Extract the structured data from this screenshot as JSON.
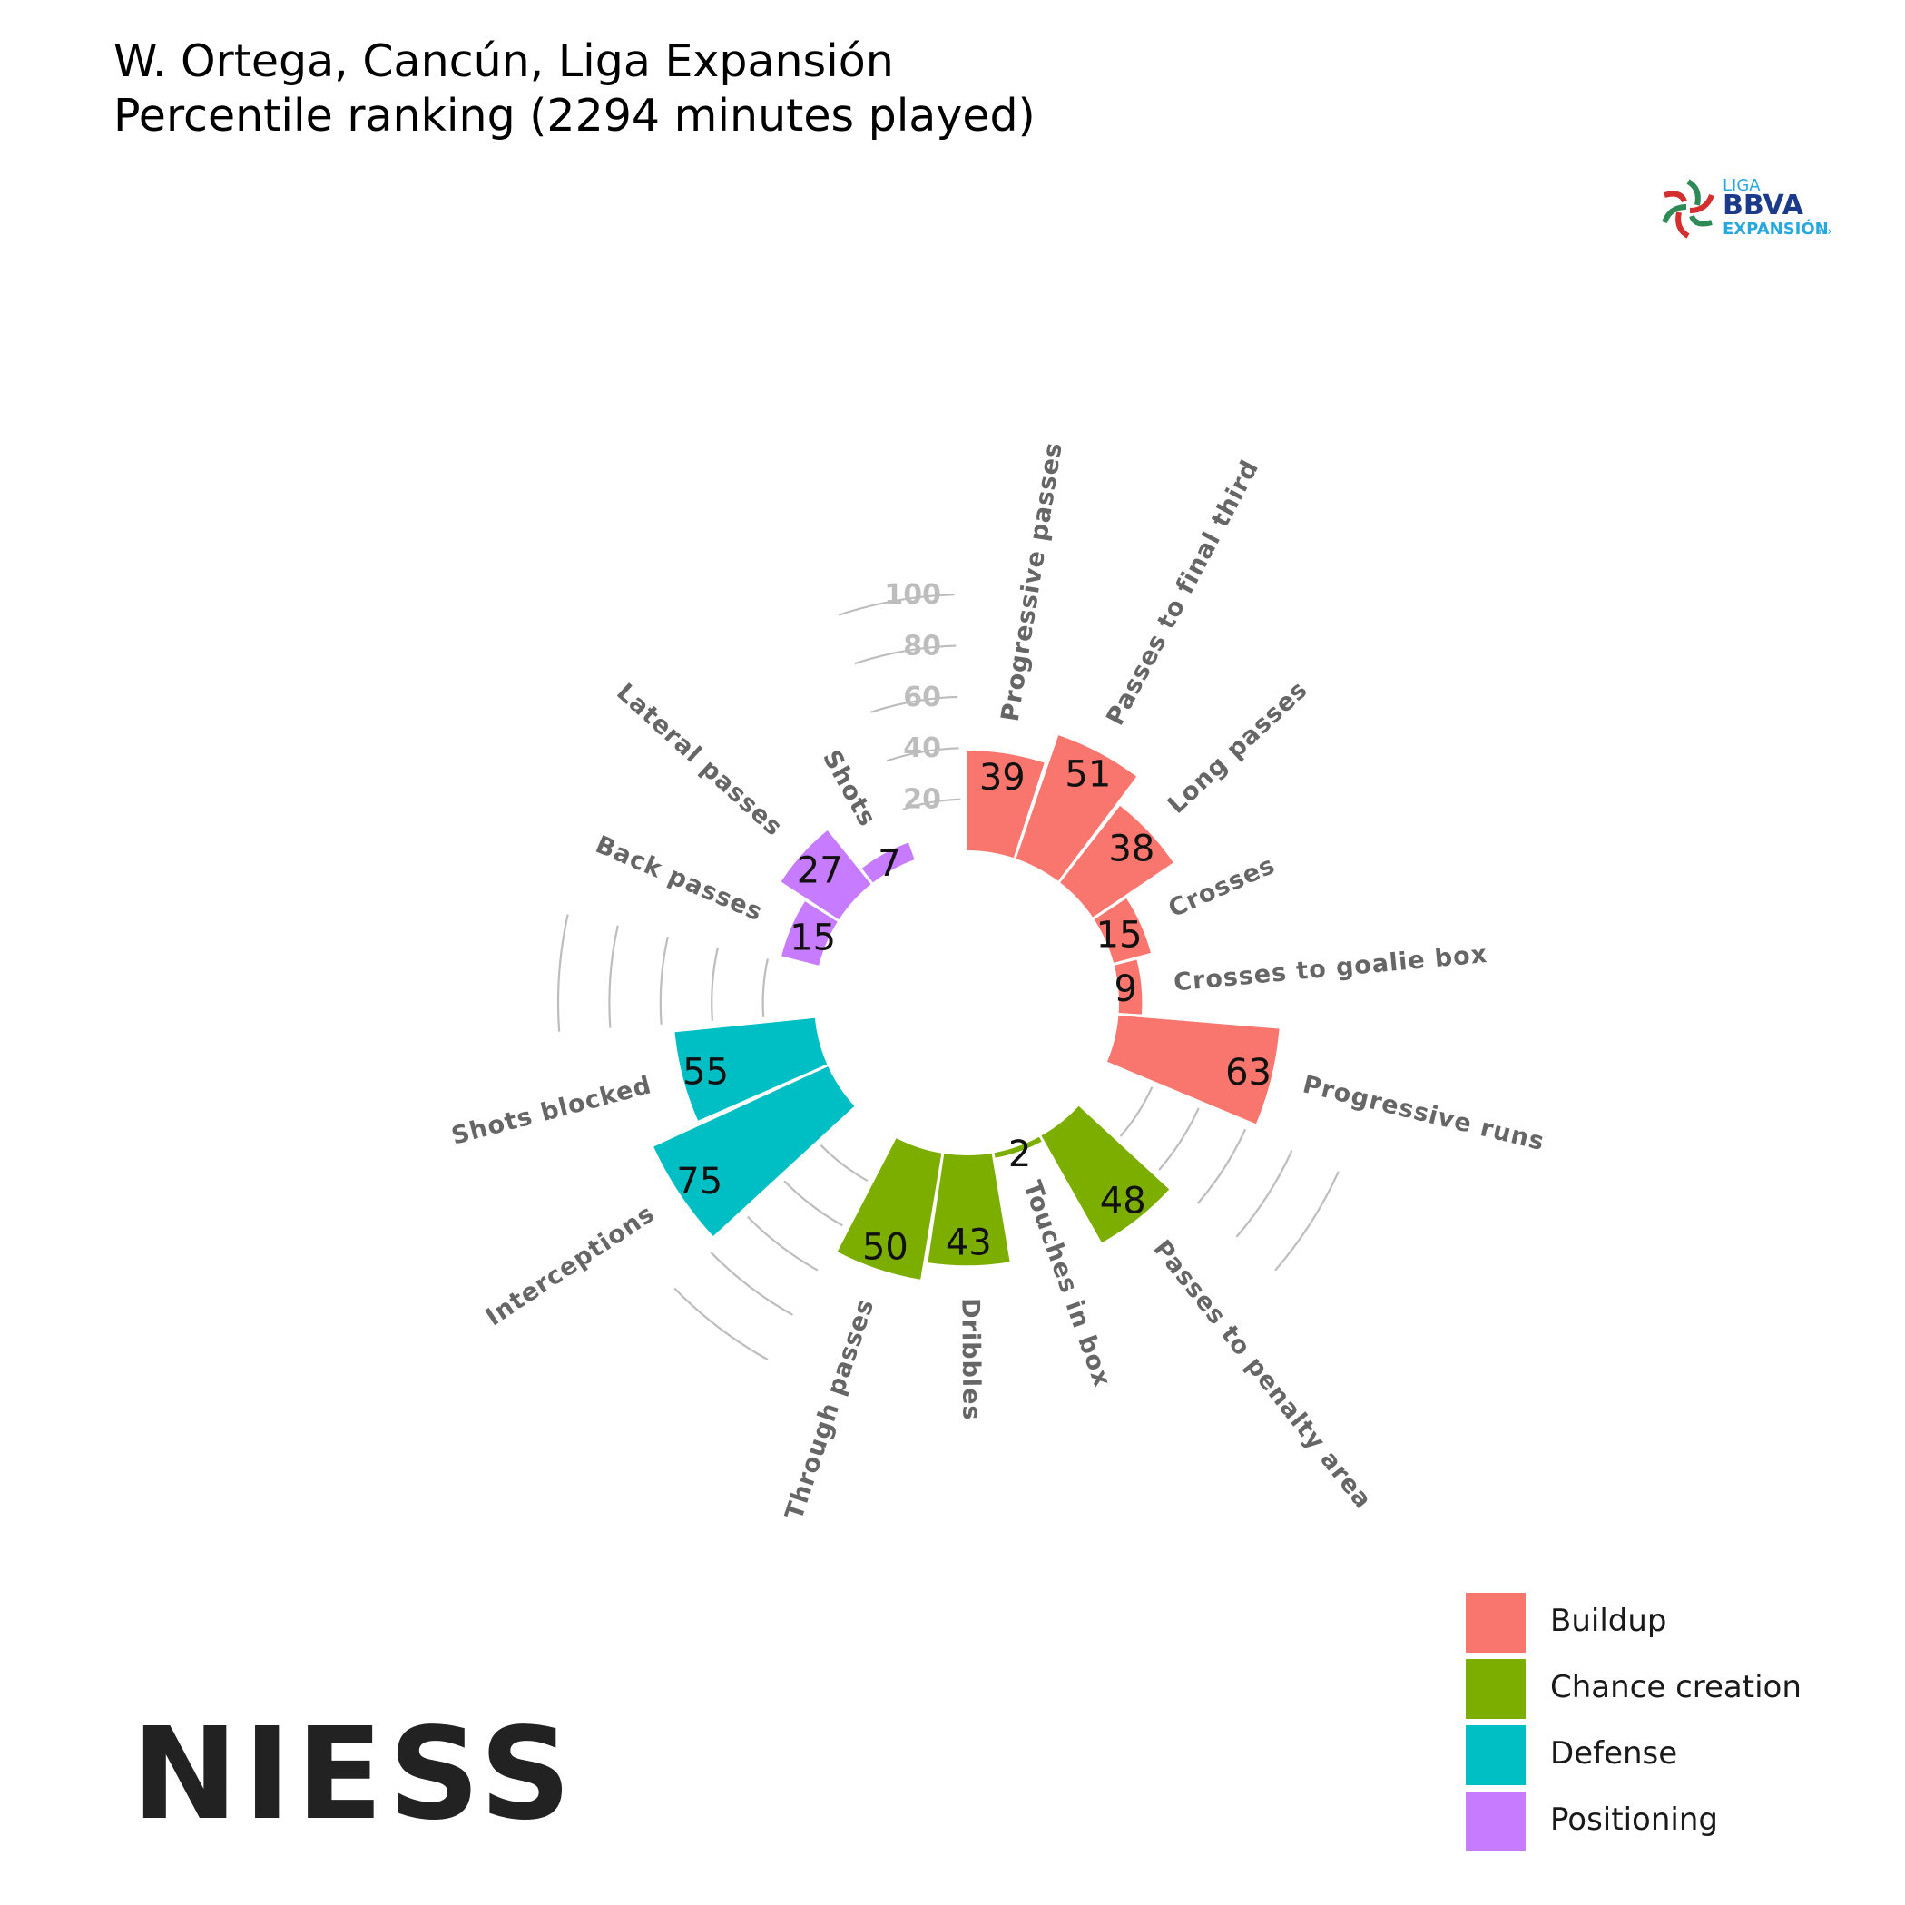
{
  "title": {
    "line1": "W. Ortega, Cancún, Liga Expansión",
    "line2": "Percentile ranking (2294 minutes played)"
  },
  "logos": {
    "liga_text_1": "LIGA",
    "liga_text_2": "BBVA",
    "liga_text_3": "EXPANSIÓN",
    "liga_text_4": "mx",
    "niess_text": "NIESS"
  },
  "colors": {
    "Buildup": "#F8766D",
    "Chance creation": "#7CAE00",
    "Defense": "#00BFC4",
    "Positioning": "#C77CFF",
    "grid": "#bdbdbd",
    "axis_text": "#bdbdbd",
    "label_text": "#666666"
  },
  "legend": [
    {
      "name": "Buildup",
      "color": "#F8766D"
    },
    {
      "name": "Chance creation",
      "color": "#7CAE00"
    },
    {
      "name": "Defense",
      "color": "#00BFC4"
    },
    {
      "name": "Positioning",
      "color": "#C77CFF"
    }
  ],
  "chart_data": {
    "type": "bar",
    "subtype": "polar-bar",
    "title": "W. Ortega, Cancún, Liga Expansión",
    "subtitle": "Percentile ranking (2294 minutes played)",
    "ylim": [
      0,
      100
    ],
    "radial_ticks": [
      20,
      40,
      60,
      80,
      100
    ],
    "categories": [
      "Progressive passes",
      "Passes to final third",
      "Long passes",
      "Crosses",
      "Crosses to goalie box",
      "Progressive runs",
      "Passes to penalty area",
      "Touches in box",
      "Dribbles",
      "Through passes",
      "Interceptions",
      "Shots blocked",
      "Back passes",
      "Lateral passes",
      "Shots"
    ],
    "groups": [
      "Buildup",
      "Buildup",
      "Buildup",
      "Buildup",
      "Buildup",
      "Buildup",
      "Chance creation",
      "Chance creation",
      "Chance creation",
      "Chance creation",
      "Defense",
      "Defense",
      "Positioning",
      "Positioning",
      "Positioning"
    ],
    "values": [
      39,
      51,
      38,
      15,
      9,
      63,
      48,
      2,
      43,
      50,
      75,
      55,
      15,
      27,
      7
    ],
    "slots": [
      0,
      1,
      2,
      3,
      4,
      5,
      7,
      8,
      9,
      10,
      12,
      13,
      15,
      16,
      17
    ],
    "legend": [
      "Buildup",
      "Chance creation",
      "Defense",
      "Positioning"
    ],
    "legend_position": "bottom-right"
  }
}
